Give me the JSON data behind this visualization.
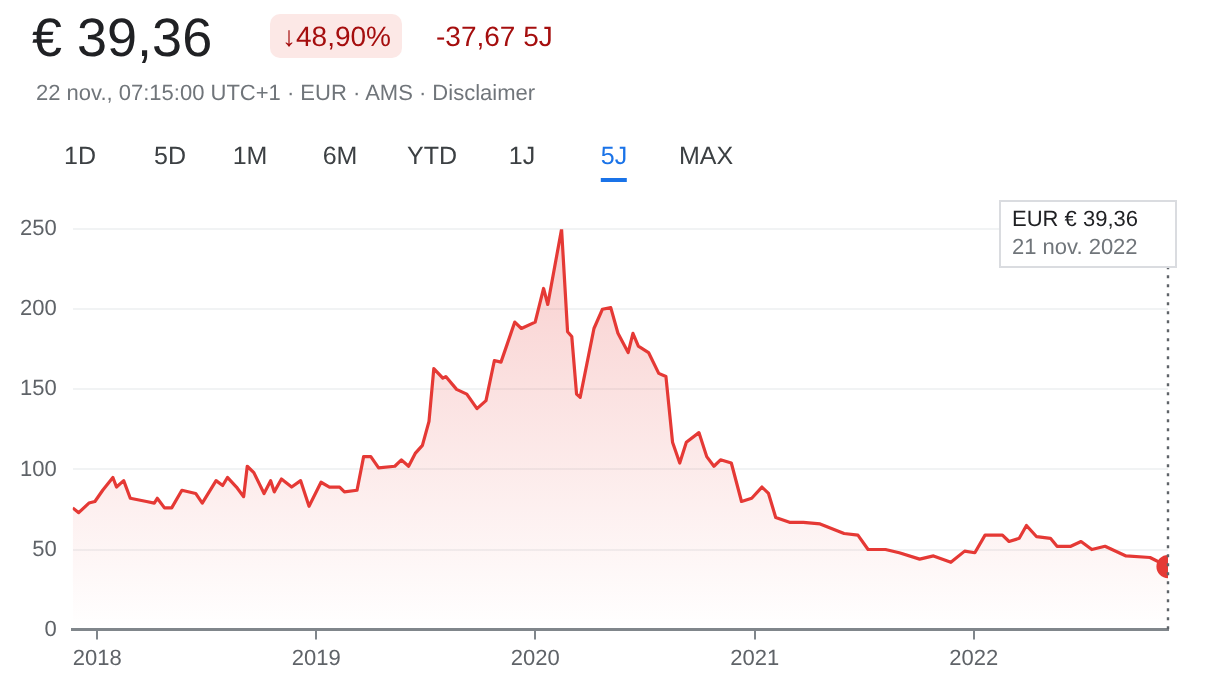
{
  "chart_data": {
    "type": "area",
    "title": "€ 39,36",
    "subtitle": "22 nov., 07:15:00 UTC+1 · EUR · AMS · Disclaimer",
    "annotations": [
      "↓48,90%",
      "-37,67 5J",
      "1D",
      "5D",
      "1M",
      "6M",
      "YTD",
      "1J",
      "5J",
      "MAX",
      "EUR € 39,36",
      "21 nov. 2022"
    ],
    "x": [
      "2017-11-21",
      "2017-12-01",
      "2017-12-18",
      "2017-12-28",
      "2018-01-10",
      "2018-01-27",
      "2018-02-02",
      "2018-02-14",
      "2018-02-25",
      "2018-03-24",
      "2018-04-06",
      "2018-04-11",
      "2018-04-23",
      "2018-05-05",
      "2018-05-22",
      "2018-06-14",
      "2018-06-25",
      "2018-07-18",
      "2018-07-29",
      "2018-08-06",
      "2018-08-21",
      "2018-09-02",
      "2018-09-08",
      "2018-09-19",
      "2018-10-06",
      "2018-10-17",
      "2018-10-23",
      "2018-11-04",
      "2018-11-21",
      "2018-12-06",
      "2018-12-20",
      "2019-01-09",
      "2019-01-23",
      "2019-02-09",
      "2019-02-17",
      "2019-03-10",
      "2019-03-21",
      "2019-04-02",
      "2019-04-15",
      "2019-05-12",
      "2019-05-23",
      "2019-06-04",
      "2019-06-15",
      "2019-06-27",
      "2019-07-08",
      "2019-07-16",
      "2019-07-31",
      "2019-08-05",
      "2019-08-23",
      "2019-09-09",
      "2019-09-26",
      "2019-10-11",
      "2019-10-25",
      "2019-11-05",
      "2019-11-28",
      "2019-12-09",
      "2020-01-01",
      "2020-01-15",
      "2020-01-22",
      "2020-02-14",
      "2020-02-24",
      "2020-03-02",
      "2020-03-10",
      "2020-03-16",
      "2020-04-08",
      "2020-04-22",
      "2020-05-06",
      "2020-05-18",
      "2020-06-04",
      "2020-06-12",
      "2020-06-21",
      "2020-07-08",
      "2020-07-25",
      "2020-08-06",
      "2020-08-17",
      "2020-08-29",
      "2020-09-09",
      "2020-09-30",
      "2020-10-13",
      "2020-10-25",
      "2020-11-05",
      "2020-11-23",
      "2020-12-10",
      "2020-12-27",
      "2021-01-13",
      "2021-01-24",
      "2021-02-05",
      "2021-02-28",
      "2021-03-23",
      "2021-04-20",
      "2021-05-30",
      "2021-06-22",
      "2021-07-09",
      "2021-08-07",
      "2021-08-30",
      "2021-10-03",
      "2021-10-26",
      "2021-11-24",
      "2021-12-17",
      "2022-01-03",
      "2022-01-20",
      "2022-02-18",
      "2022-03-01",
      "2022-03-18",
      "2022-03-30",
      "2022-04-16",
      "2022-05-09",
      "2022-05-20",
      "2022-06-12",
      "2022-06-29",
      "2022-07-17",
      "2022-08-08",
      "2022-09-12",
      "2022-10-22",
      "2022-11-21"
    ],
    "series": [
      {
        "color": "#e53935",
        "values": [
          76,
          73,
          79,
          80,
          87,
          95,
          89,
          93,
          82,
          80,
          79,
          82,
          76,
          76,
          87,
          85,
          79,
          93,
          90,
          95,
          89,
          83,
          102,
          98,
          85,
          93,
          86,
          94,
          89,
          93,
          77,
          92,
          89,
          89,
          86,
          87,
          108,
          108,
          101,
          102,
          106,
          102,
          110,
          115,
          130,
          163,
          157,
          158,
          150,
          147,
          138,
          143,
          168,
          167,
          192,
          188,
          192,
          213,
          203,
          250,
          186,
          183,
          147,
          145,
          188,
          200,
          201,
          185,
          173,
          185,
          177,
          173,
          160,
          158,
          117,
          104,
          117,
          123,
          108,
          102,
          106,
          104,
          80,
          82,
          89,
          85,
          70,
          67,
          67,
          66,
          60,
          59,
          50,
          50,
          48,
          44,
          46,
          42,
          49,
          48,
          59,
          59,
          55,
          57,
          65,
          58,
          57,
          52,
          52,
          55,
          50,
          52,
          46,
          45,
          39.36
        ]
      }
    ],
    "xlim": [
      "2017-11-21",
      "2022-11-21"
    ],
    "xticks": [
      {
        "value": "2018-01-01",
        "label": "2018"
      },
      {
        "value": "2019-01-01",
        "label": "2019"
      },
      {
        "value": "2020-01-01",
        "label": "2020"
      },
      {
        "value": "2021-01-01",
        "label": "2021"
      },
      {
        "value": "2022-01-01",
        "label": "2022"
      }
    ],
    "ylim": [
      0,
      250
    ],
    "yticks": [
      0,
      50,
      100,
      150,
      200,
      250
    ],
    "ref_lines": [
      {
        "axis": "x",
        "value": "2022-11-21",
        "color": "#5f6368",
        "line_style": "dotted"
      }
    ],
    "grid": "y",
    "legend": false,
    "marker": "none",
    "line_style": "solid"
  }
}
